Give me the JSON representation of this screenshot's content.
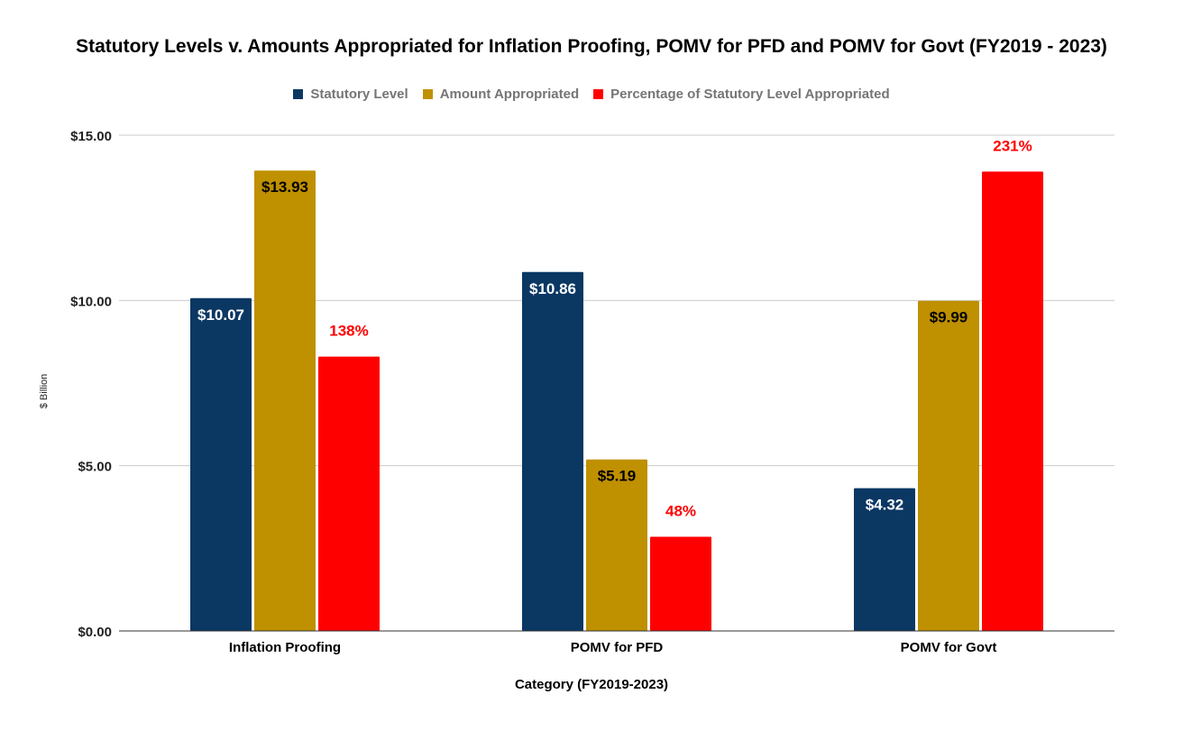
{
  "chart_data": {
    "type": "bar",
    "title": "Statutory Levels v. Amounts Appropriated for Inflation Proofing, POMV for PFD and POMV for Govt (FY2019 - 2023)",
    "xlabel": "Category (FY2019-2023)",
    "ylabel": "$ Billion",
    "ylim": [
      0,
      15
    ],
    "yticks": [
      {
        "value": 0,
        "label": "$0.00"
      },
      {
        "value": 5,
        "label": "$5.00"
      },
      {
        "value": 10,
        "label": "$10.00"
      },
      {
        "value": 15,
        "label": "$15.00"
      }
    ],
    "categories": [
      "Inflation Proofing",
      "POMV for PFD",
      "POMV for Govt"
    ],
    "series": [
      {
        "name": "Statutory Level",
        "color": "#0b3763",
        "values": [
          10.07,
          10.86,
          4.32
        ],
        "labels": [
          "$10.07",
          "$10.86",
          "$4.32"
        ],
        "label_color": "#ffffff"
      },
      {
        "name": "Amount Appropriated",
        "color": "#bf9000",
        "values": [
          13.93,
          5.19,
          9.99
        ],
        "labels": [
          "$13.93",
          "$5.19",
          "$9.99"
        ],
        "label_color": "#000000"
      },
      {
        "name": "Percentage of Statutory Level Appropriated",
        "color": "#ff0000",
        "values": [
          8.3,
          2.85,
          13.9
        ],
        "labels": [
          "138%",
          "48%",
          "231%"
        ],
        "label_color": "#ff0000"
      }
    ],
    "grid": true,
    "legend": "top"
  }
}
